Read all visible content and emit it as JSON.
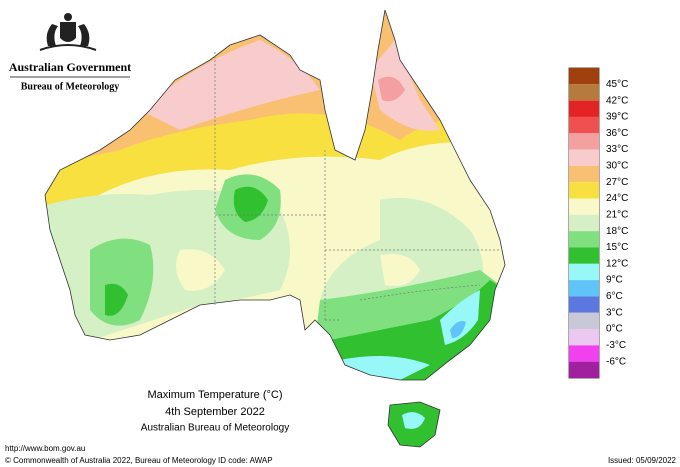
{
  "header": {
    "government": "Australian Government",
    "bureau": "Bureau of Meteorology"
  },
  "caption": {
    "title": "Maximum Temperature (°C)",
    "date": "4th September 2022",
    "source": "Australian Bureau of Meteorology"
  },
  "footer": {
    "url": "http://www.bom.gov.au",
    "copyright": "© Commonwealth of Australia 2022, Bureau of Meteorology",
    "id_code": "ID code: AWAP",
    "issued": "Issued: 05/09/2022"
  },
  "legend": {
    "labels": [
      "45°C",
      "42°C",
      "39°C",
      "36°C",
      "33°C",
      "30°C",
      "27°C",
      "24°C",
      "21°C",
      "18°C",
      "15°C",
      "12°C",
      "9°C",
      "6°C",
      "3°C",
      "0°C",
      "-3°C",
      "-6°C"
    ],
    "colors": [
      "#a0400c",
      "#b87a3c",
      "#e42424",
      "#f05050",
      "#f4a0a0",
      "#f8cccc",
      "#f8c070",
      "#f8e040",
      "#f8f8c8",
      "#d4f0c4",
      "#80e080",
      "#30c030",
      "#98f8f8",
      "#60c4f8",
      "#5a78e0",
      "#c8c8d8",
      "#ecc8f0",
      "#f040f0",
      "#a020a0"
    ]
  }
}
